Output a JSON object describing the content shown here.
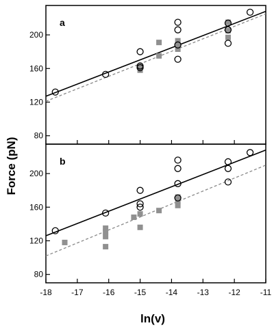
{
  "chart_data": {
    "type": "scatter",
    "xlabel": "ln(v)",
    "ylabel": "Force (pN)",
    "xlim": [
      -18,
      -11
    ],
    "x_ticks": [
      -18,
      -17,
      -16,
      -15,
      -14,
      -13,
      -12,
      -11
    ],
    "panels": [
      {
        "label": "a",
        "ylim": [
          70,
          235
        ],
        "y_ticks": [
          80,
          120,
          160,
          200
        ],
        "circles": [
          [
            -17.7,
            132
          ],
          [
            -16.1,
            153
          ],
          [
            -15.0,
            180
          ],
          [
            -15.0,
            163
          ],
          [
            -15.0,
            161
          ],
          [
            -13.8,
            215
          ],
          [
            -13.8,
            206
          ],
          [
            -13.8,
            188
          ],
          [
            -13.8,
            171
          ],
          [
            -12.2,
            214
          ],
          [
            -12.2,
            206
          ],
          [
            -12.2,
            190
          ],
          [
            -11.5,
            227
          ]
        ],
        "squares": [
          [
            -15.0,
            162
          ],
          [
            -15.0,
            158
          ],
          [
            -14.4,
            191
          ],
          [
            -14.4,
            175
          ],
          [
            -13.8,
            193
          ],
          [
            -13.8,
            189
          ],
          [
            -13.8,
            183
          ],
          [
            -12.2,
            215
          ],
          [
            -12.2,
            205
          ],
          [
            -12.2,
            197
          ]
        ],
        "solid_fit": {
          "x": [
            -18,
            -11
          ],
          "y": [
            127,
            228
          ]
        },
        "dashed_fit": {
          "x": [
            -18,
            -11
          ],
          "y": [
            121,
            225
          ]
        },
        "solid_color": "#000000",
        "dashed_color": "#888888",
        "square_color": "#909090"
      },
      {
        "label": "b",
        "ylim": [
          70,
          235
        ],
        "y_ticks": [
          80,
          120,
          160,
          200
        ],
        "circles": [
          [
            -17.7,
            132
          ],
          [
            -16.1,
            153
          ],
          [
            -15.0,
            180
          ],
          [
            -15.0,
            164
          ],
          [
            -15.0,
            160
          ],
          [
            -13.8,
            216
          ],
          [
            -13.8,
            206
          ],
          [
            -13.8,
            188
          ],
          [
            -13.8,
            171
          ],
          [
            -12.2,
            214
          ],
          [
            -12.2,
            206
          ],
          [
            -12.2,
            190
          ],
          [
            -11.5,
            225
          ]
        ],
        "squares": [
          [
            -17.4,
            118
          ],
          [
            -16.1,
            135
          ],
          [
            -16.1,
            131
          ],
          [
            -16.1,
            125
          ],
          [
            -16.1,
            113
          ],
          [
            -15.2,
            148
          ],
          [
            -15.0,
            152
          ],
          [
            -15.0,
            136
          ],
          [
            -14.4,
            156
          ],
          [
            -13.8,
            172
          ],
          [
            -13.8,
            167
          ],
          [
            -13.8,
            162
          ]
        ],
        "solid_fit": {
          "x": [
            -18,
            -11
          ],
          "y": [
            126,
            228
          ]
        },
        "dashed_fit": {
          "x": [
            -18,
            -11
          ],
          "y": [
            102,
            210
          ]
        },
        "solid_color": "#000000",
        "dashed_color": "#888888",
        "square_color": "#909090"
      }
    ]
  }
}
